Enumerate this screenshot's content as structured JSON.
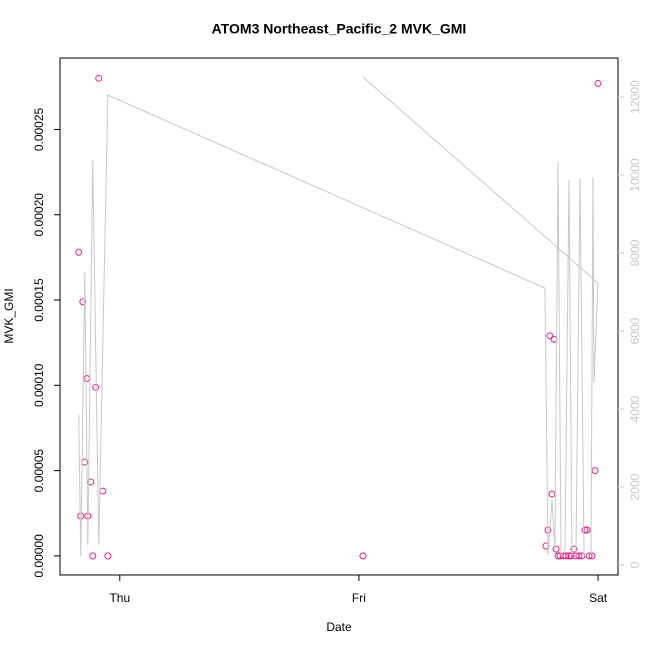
{
  "chart_data": {
    "type": "scatter",
    "title": "ATOM3 Northeast_Pacific_2 MVK_GMI",
    "x_label": "Date",
    "y_label": "MVK_GMI",
    "xlim": [
      -6.0,
      50.0
    ],
    "xticks": [
      {
        "value": 0,
        "label": "Thu"
      },
      {
        "value": 24,
        "label": "Fri"
      },
      {
        "value": 48,
        "label": "Sat"
      }
    ],
    "ylim": [
      -1.12e-05,
      0.0002919
    ],
    "yticks": [
      {
        "value": 0,
        "label": "0.00000"
      },
      {
        "value": 5e-05,
        "label": "0.00005"
      },
      {
        "value": 0.0001,
        "label": "0.00010"
      },
      {
        "value": 0.00015,
        "label": "0.00015"
      },
      {
        "value": 0.0002,
        "label": "0.00020"
      },
      {
        "value": 0.00025,
        "label": "0.00025"
      }
    ],
    "y2lim": [
      -256,
      13000
    ],
    "y2ticks": [
      0,
      2000,
      4000,
      6000,
      8000,
      10000,
      12000
    ],
    "y2_color": "#c8c8c8",
    "series": [
      {
        "type": "scatter",
        "color": "#e8208c",
        "x": [
          -4.12,
          -3.92,
          -3.71,
          -3.51,
          -3.31,
          -3.21,
          -2.91,
          -2.71,
          -2.41,
          -2.11,
          -1.71,
          -1.2,
          24.4,
          42.77,
          42.97,
          43.17,
          43.37,
          43.57,
          43.78,
          43.98,
          44.18,
          44.48,
          44.78,
          45.08,
          45.28,
          45.58,
          45.78,
          46.08,
          46.39,
          46.69,
          46.89,
          47.09,
          47.39,
          47.69,
          47.99
        ],
        "values": [
          0.000178,
          2.34e-05,
          0.000149,
          5.5e-05,
          0.000104,
          2.34e-05,
          4.33e-05,
          0,
          9.88e-05,
          0.00028,
          3.8e-05,
          0,
          0,
          5.8e-06,
          1.52e-05,
          0.000129,
          3.63e-05,
          0.000127,
          4e-06,
          0,
          0,
          0,
          0,
          0,
          0,
          4e-06,
          0,
          0,
          0,
          1.52e-05,
          1.52e-05,
          0,
          0,
          5e-05,
          0.000277
        ]
      },
      {
        "type": "line",
        "axis": "y2",
        "color": "#c8c8c8",
        "x": [
          -4.12,
          -3.92,
          -3.51,
          -3.21,
          -2.71,
          -2.11,
          -1.2,
          42.67,
          42.97,
          43.37,
          43.67,
          43.98,
          44.28,
          44.68,
          45.08,
          45.38,
          45.78,
          46.18,
          46.59,
          46.89,
          47.29,
          47.49,
          47.59,
          47.99,
          24.4
        ],
        "values": [
          3870,
          230,
          7510,
          510,
          10380,
          510,
          12050,
          7100,
          256,
          1667,
          385,
          10333,
          256,
          385,
          9872,
          256,
          256,
          9923,
          256,
          256,
          256,
          9949,
          4667,
          7231,
          12513
        ]
      }
    ]
  }
}
